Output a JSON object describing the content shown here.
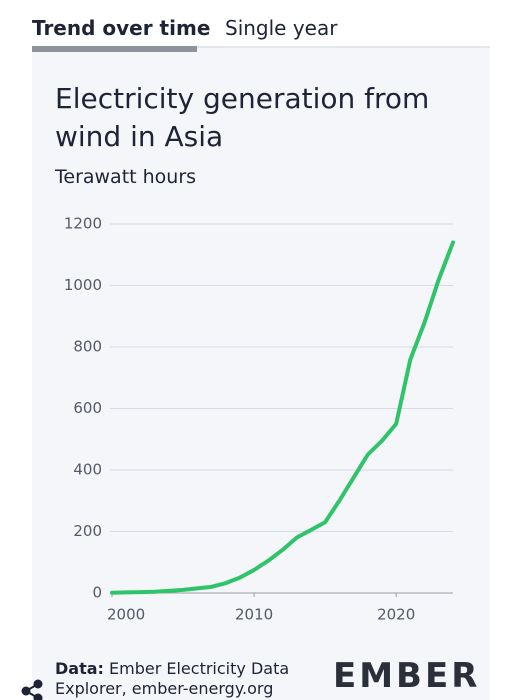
{
  "tabs": [
    "Trend over time",
    "Single year"
  ],
  "chart_data": {
    "type": "line",
    "title": "Electricity generation from wind in Asia",
    "subtitle": "Terawatt hours",
    "x": [
      2000,
      2001,
      2002,
      2003,
      2004,
      2005,
      2006,
      2007,
      2008,
      2009,
      2010,
      2011,
      2012,
      2013,
      2014,
      2015,
      2016,
      2017,
      2018,
      2019,
      2020,
      2021,
      2022,
      2023,
      2024
    ],
    "series": [
      {
        "name": "Wind",
        "color": "#2fc46a",
        "values": [
          1,
          2,
          3,
          4,
          7,
          10,
          15,
          20,
          32,
          50,
          75,
          105,
          140,
          180,
          205,
          230,
          300,
          375,
          450,
          495,
          550,
          760,
          880,
          1020,
          1140
        ]
      }
    ],
    "xlim": [
      2000,
      2024
    ],
    "xticks": [
      2000,
      2010,
      2020
    ],
    "ylim": [
      0,
      1200
    ],
    "yticks": [
      0,
      200,
      400,
      600,
      800,
      1000,
      1200
    ],
    "grid": true
  },
  "footer": {
    "source_label": "Data:",
    "source": "Ember Electricity Data Explorer, ember-energy.org",
    "logo": "EMBER"
  }
}
